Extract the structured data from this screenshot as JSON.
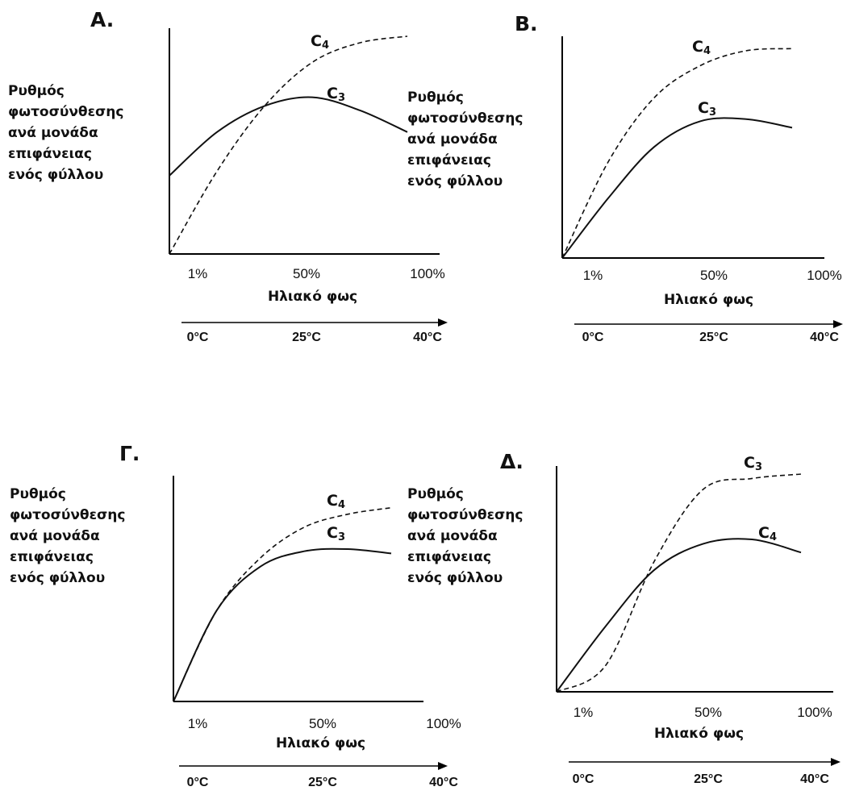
{
  "chart_data": [
    {
      "panel": "A.",
      "type": "line",
      "ylabel": "Ρυθμός\nφωτοσύνθεσης\nανά μονάδα\nεπιφάνειας\nενός φύλλου",
      "xlabel": "Ηλιακό φως",
      "x_ticks": [
        "1%",
        "50%",
        "100%"
      ],
      "temp_axis": [
        "0°C",
        "25°C",
        "40°C"
      ],
      "x": [
        0,
        20,
        40,
        60,
        80,
        100
      ],
      "series": [
        {
          "name": "C3",
          "style": "solid",
          "values": [
            0.36,
            0.56,
            0.68,
            0.72,
            0.66,
            0.56
          ]
        },
        {
          "name": "C4",
          "style": "dashed",
          "values": [
            0.0,
            0.38,
            0.68,
            0.88,
            0.97,
            1.0
          ]
        }
      ]
    },
    {
      "panel": "B.",
      "type": "line",
      "ylabel": "Ρυθμός\nφωτοσύνθεσης\nανά μονάδα\nεπιφάνειας\nενός φύλλου",
      "xlabel": "Ηλιακό φως",
      "x_ticks": [
        "1%",
        "50%",
        "100%"
      ],
      "temp_axis": [
        "0°C",
        "25°C",
        "40°C"
      ],
      "x": [
        0,
        20,
        40,
        60,
        80,
        100
      ],
      "series": [
        {
          "name": "C3",
          "style": "solid",
          "values": [
            0.0,
            0.28,
            0.52,
            0.64,
            0.65,
            0.61
          ]
        },
        {
          "name": "C4",
          "style": "dashed",
          "values": [
            0.0,
            0.45,
            0.75,
            0.9,
            0.97,
            0.98
          ]
        }
      ]
    },
    {
      "panel": "Γ.",
      "type": "line",
      "ylabel": "Ρυθμός\nφωτοσύνθεσης\nανά μονάδα\nεπιφάνειας\nενός φύλλου",
      "xlabel": "Ηλιακό φως",
      "x_ticks": [
        "1%",
        "50%",
        "100%"
      ],
      "temp_axis": [
        "0°C",
        "25°C",
        "40°C"
      ],
      "x": [
        0,
        20,
        40,
        60,
        80,
        100
      ],
      "series": [
        {
          "name": "C3",
          "style": "solid",
          "values": [
            0.0,
            0.42,
            0.62,
            0.69,
            0.7,
            0.68
          ]
        },
        {
          "name": "C4",
          "style": "dashed",
          "values": [
            0.0,
            0.42,
            0.66,
            0.8,
            0.86,
            0.89
          ]
        }
      ]
    },
    {
      "panel": "Δ.",
      "type": "line",
      "ylabel": "Ρυθμός\nφωτοσύνθεσης\nανά μονάδα\nεπιφάνειας\nενός φύλλου",
      "xlabel": "Ηλιακό φως",
      "x_ticks": [
        "1%",
        "50%",
        "100%"
      ],
      "temp_axis": [
        "0°C",
        "25°C",
        "40°C"
      ],
      "x": [
        0,
        20,
        40,
        60,
        80,
        100
      ],
      "series": [
        {
          "name": "C3",
          "style": "dashed",
          "values": [
            0.0,
            0.12,
            0.6,
            0.93,
            0.98,
            1.0
          ]
        },
        {
          "name": "C4",
          "style": "solid",
          "values": [
            0.0,
            0.3,
            0.56,
            0.68,
            0.7,
            0.64
          ]
        }
      ]
    }
  ]
}
